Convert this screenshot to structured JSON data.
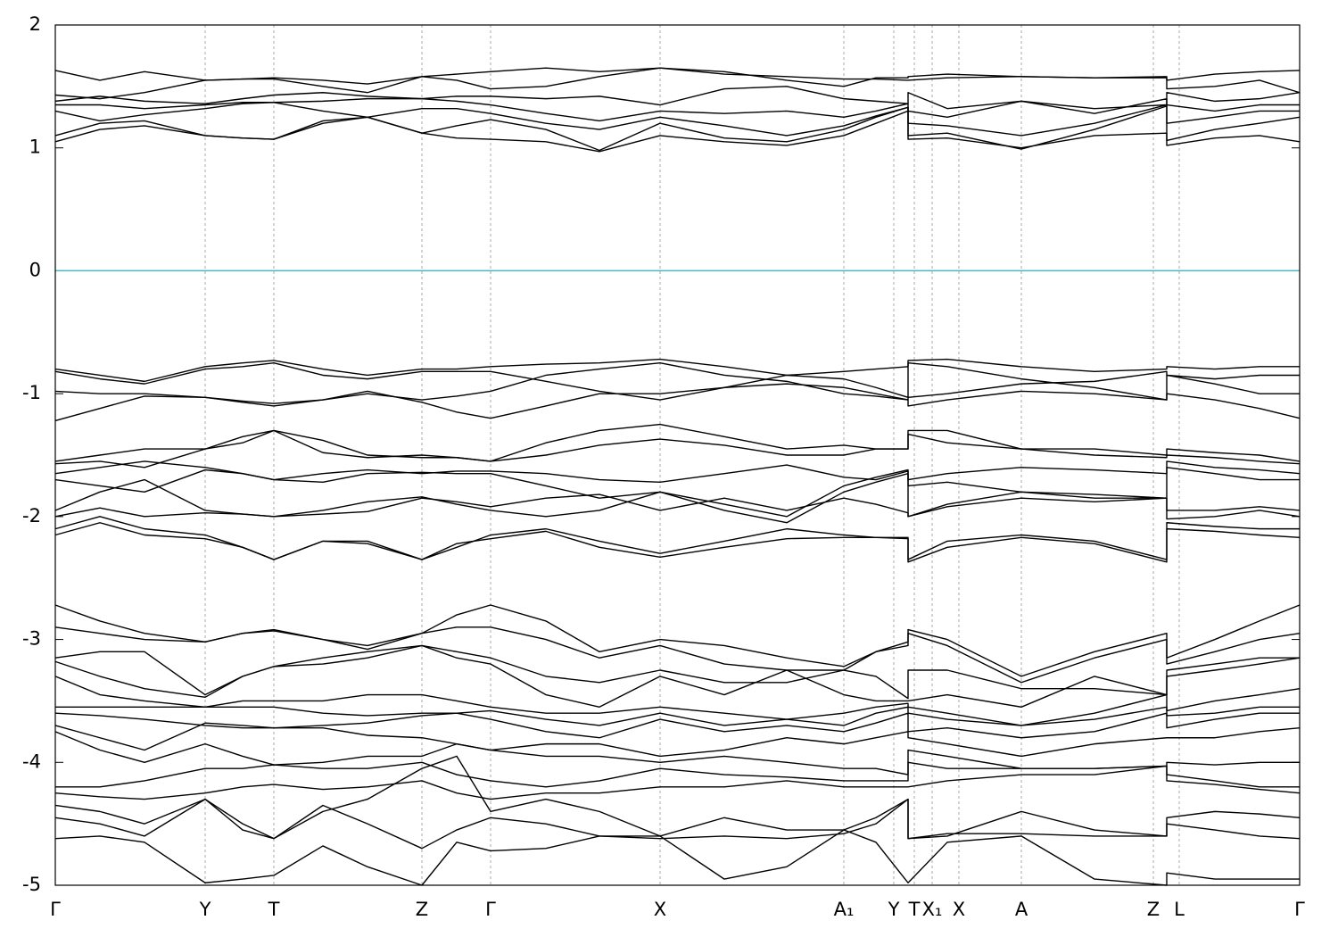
{
  "chart_data": {
    "type": "line",
    "color": "#000000",
    "grid": "x",
    "hline": {
      "value": 0,
      "color": "#4fb3c9"
    },
    "xlim": [
      0,
      2.79
    ],
    "ylim": [
      -5,
      2
    ],
    "yticks": [
      -5,
      -4,
      -3,
      -2,
      -1,
      0,
      1,
      2
    ],
    "xticks": [
      {
        "value": 0,
        "label": "Γ"
      },
      {
        "value": 0.336,
        "label": "Y"
      },
      {
        "value": 0.49,
        "label": "T"
      },
      {
        "value": 0.822,
        "label": "Z"
      },
      {
        "value": 0.976,
        "label": "Γ"
      },
      {
        "value": 1.356,
        "label": "X"
      },
      {
        "value": 1.768,
        "label": "A₁"
      },
      {
        "value": 1.88,
        "label": "Y"
      },
      {
        "value": 1.926,
        "label": "T"
      },
      {
        "value": 1.966,
        "label": "X₁"
      },
      {
        "value": 2.026,
        "label": "X"
      },
      {
        "value": 2.166,
        "label": "A"
      },
      {
        "value": 2.462,
        "label": "Z"
      },
      {
        "value": 2.52,
        "label": "L"
      },
      {
        "value": 2.79,
        "label": "Γ"
      }
    ],
    "x": [
      0,
      0.1,
      0.2,
      0.336,
      0.42,
      0.49,
      0.6,
      0.7,
      0.822,
      0.9,
      0.976,
      1.1,
      1.22,
      1.356,
      1.5,
      1.64,
      1.768,
      1.84,
      1.912,
      1.912,
      2.0,
      2.166,
      2.33,
      2.492,
      2.492,
      2.6,
      2.7,
      2.79
    ],
    "series": [
      {
        "values": [
          1.05,
          1.15,
          1.18,
          1.1,
          1.08,
          1.07,
          1.2,
          1.25,
          1.12,
          1.08,
          1.07,
          1.05,
          0.97,
          1.1,
          1.05,
          1.02,
          1.1,
          1.2,
          1.3,
          1.07,
          1.08,
          1.0,
          1.1,
          1.12,
          1.02,
          1.08,
          1.1,
          1.05
        ]
      },
      {
        "values": [
          1.1,
          1.2,
          1.22,
          1.1,
          1.08,
          1.07,
          1.22,
          1.25,
          1.12,
          1.18,
          1.23,
          1.15,
          0.98,
          1.2,
          1.08,
          1.05,
          1.15,
          1.25,
          1.33,
          1.1,
          1.12,
          0.99,
          1.15,
          1.34,
          1.06,
          1.15,
          1.2,
          1.25
        ]
      },
      {
        "values": [
          1.3,
          1.22,
          1.27,
          1.32,
          1.36,
          1.37,
          1.3,
          1.25,
          1.32,
          1.32,
          1.28,
          1.2,
          1.15,
          1.25,
          1.18,
          1.1,
          1.18,
          1.26,
          1.33,
          1.2,
          1.18,
          1.1,
          1.2,
          1.35,
          1.2,
          1.25,
          1.3,
          1.3
        ]
      },
      {
        "values": [
          1.35,
          1.35,
          1.32,
          1.35,
          1.37,
          1.37,
          1.38,
          1.4,
          1.4,
          1.38,
          1.35,
          1.28,
          1.22,
          1.3,
          1.28,
          1.3,
          1.25,
          1.3,
          1.36,
          1.3,
          1.25,
          1.38,
          1.28,
          1.4,
          1.35,
          1.3,
          1.35,
          1.35
        ]
      },
      {
        "values": [
          1.38,
          1.42,
          1.38,
          1.36,
          1.4,
          1.43,
          1.45,
          1.42,
          1.4,
          1.42,
          1.42,
          1.4,
          1.42,
          1.35,
          1.48,
          1.5,
          1.4,
          1.38,
          1.36,
          1.45,
          1.32,
          1.38,
          1.32,
          1.35,
          1.45,
          1.38,
          1.4,
          1.45
        ]
      },
      {
        "values": [
          1.43,
          1.4,
          1.45,
          1.55,
          1.56,
          1.56,
          1.5,
          1.45,
          1.58,
          1.55,
          1.48,
          1.5,
          1.58,
          1.65,
          1.6,
          1.58,
          1.56,
          1.56,
          1.55,
          1.55,
          1.57,
          1.58,
          1.57,
          1.57,
          1.48,
          1.5,
          1.55,
          1.45
        ]
      },
      {
        "values": [
          1.63,
          1.55,
          1.62,
          1.55,
          1.56,
          1.57,
          1.55,
          1.52,
          1.58,
          1.6,
          1.62,
          1.65,
          1.62,
          1.65,
          1.62,
          1.55,
          1.5,
          1.57,
          1.57,
          1.58,
          1.6,
          1.58,
          1.57,
          1.58,
          1.55,
          1.6,
          1.62,
          1.63
        ]
      },
      {
        "values": [
          -0.8,
          -0.85,
          -0.9,
          -0.78,
          -0.75,
          -0.73,
          -0.8,
          -0.85,
          -0.8,
          -0.8,
          -0.78,
          -0.76,
          -0.75,
          -0.72,
          -0.78,
          -0.85,
          -0.82,
          -0.8,
          -0.78,
          -0.73,
          -0.72,
          -0.78,
          -0.82,
          -0.8,
          -0.78,
          -0.8,
          -0.78,
          -0.78
        ]
      },
      {
        "values": [
          -0.82,
          -0.88,
          -0.92,
          -0.8,
          -0.78,
          -0.75,
          -0.85,
          -0.88,
          -0.82,
          -0.82,
          -0.82,
          -0.9,
          -0.98,
          -1.05,
          -0.95,
          -0.85,
          -0.88,
          -0.95,
          -1.03,
          -0.75,
          -0.78,
          -0.88,
          -0.95,
          -1.05,
          -0.85,
          -0.88,
          -0.85,
          -0.85
        ]
      },
      {
        "values": [
          -0.98,
          -1.0,
          -1.0,
          -1.03,
          -1.07,
          -1.1,
          -1.05,
          -1.0,
          -1.05,
          -1.02,
          -0.98,
          -0.85,
          -0.8,
          -0.75,
          -0.85,
          -0.9,
          -1.0,
          -1.02,
          -1.05,
          -1.03,
          -1.0,
          -0.92,
          -0.9,
          -0.82,
          -0.85,
          -0.92,
          -1.0,
          -1.0
        ]
      },
      {
        "values": [
          -1.22,
          -1.12,
          -1.02,
          -1.03,
          -1.06,
          -1.08,
          -1.05,
          -0.98,
          -1.07,
          -1.15,
          -1.2,
          -1.1,
          -1.0,
          -1.0,
          -0.95,
          -0.92,
          -0.95,
          -1.0,
          -1.05,
          -1.1,
          -1.05,
          -0.98,
          -1.0,
          -1.05,
          -1.0,
          -1.05,
          -1.12,
          -1.2
        ]
      },
      {
        "values": [
          -1.55,
          -1.5,
          -1.45,
          -1.45,
          -1.35,
          -1.3,
          -1.38,
          -1.5,
          -1.52,
          -1.52,
          -1.55,
          -1.4,
          -1.3,
          -1.25,
          -1.35,
          -1.45,
          -1.42,
          -1.45,
          -1.45,
          -1.3,
          -1.3,
          -1.45,
          -1.45,
          -1.5,
          -1.45,
          -1.48,
          -1.5,
          -1.55
        ]
      },
      {
        "values": [
          -1.57,
          -1.55,
          -1.6,
          -1.45,
          -1.4,
          -1.3,
          -1.48,
          -1.52,
          -1.5,
          -1.52,
          -1.55,
          -1.5,
          -1.42,
          -1.37,
          -1.42,
          -1.5,
          -1.5,
          -1.45,
          -1.45,
          -1.33,
          -1.4,
          -1.45,
          -1.5,
          -1.52,
          -1.5,
          -1.52,
          -1.55,
          -1.57
        ]
      },
      {
        "values": [
          -1.65,
          -1.6,
          -1.55,
          -1.6,
          -1.65,
          -1.7,
          -1.65,
          -1.62,
          -1.65,
          -1.63,
          -1.63,
          -1.65,
          -1.7,
          -1.72,
          -1.65,
          -1.58,
          -1.68,
          -1.7,
          -1.63,
          -1.7,
          -1.65,
          -1.6,
          -1.62,
          -1.65,
          -1.55,
          -1.6,
          -1.62,
          -1.65
        ]
      },
      {
        "values": [
          -1.7,
          -1.75,
          -1.8,
          -1.62,
          -1.65,
          -1.7,
          -1.72,
          -1.65,
          -1.64,
          -1.65,
          -1.65,
          -1.75,
          -1.85,
          -1.8,
          -1.9,
          -2.0,
          -1.75,
          -1.68,
          -1.62,
          -1.75,
          -1.72,
          -1.8,
          -1.82,
          -1.85,
          -1.6,
          -1.65,
          -1.7,
          -1.7
        ]
      },
      {
        "values": [
          -1.95,
          -1.8,
          -1.7,
          -1.95,
          -1.98,
          -2.0,
          -1.95,
          -1.88,
          -1.84,
          -1.9,
          -1.95,
          -2.0,
          -1.95,
          -1.8,
          -1.95,
          -2.05,
          -1.8,
          -1.72,
          -1.65,
          -2.0,
          -1.9,
          -1.8,
          -1.85,
          -1.85,
          -1.95,
          -1.95,
          -1.92,
          -1.95
        ]
      },
      {
        "values": [
          -2.0,
          -1.93,
          -2.0,
          -1.97,
          -1.98,
          -2.0,
          -1.98,
          -1.96,
          -1.85,
          -1.88,
          -1.92,
          -1.85,
          -1.82,
          -1.95,
          -1.85,
          -1.95,
          -1.85,
          -1.9,
          -1.97,
          -2.0,
          -1.92,
          -1.85,
          -1.88,
          -1.85,
          -2.02,
          -2.0,
          -1.95,
          -2.0
        ]
      },
      {
        "values": [
          -2.1,
          -2.0,
          -2.1,
          -2.15,
          -2.25,
          -2.35,
          -2.2,
          -2.2,
          -2.35,
          -2.25,
          -2.15,
          -2.1,
          -2.2,
          -2.3,
          -2.2,
          -2.1,
          -2.15,
          -2.17,
          -2.17,
          -2.35,
          -2.2,
          -2.15,
          -2.2,
          -2.35,
          -2.05,
          -2.08,
          -2.1,
          -2.1
        ]
      },
      {
        "values": [
          -2.15,
          -2.05,
          -2.15,
          -2.18,
          -2.25,
          -2.35,
          -2.2,
          -2.22,
          -2.35,
          -2.22,
          -2.18,
          -2.12,
          -2.25,
          -2.33,
          -2.25,
          -2.18,
          -2.17,
          -2.17,
          -2.18,
          -2.37,
          -2.25,
          -2.17,
          -2.22,
          -2.37,
          -2.1,
          -2.12,
          -2.15,
          -2.17
        ]
      },
      {
        "values": [
          -2.72,
          -2.85,
          -2.95,
          -3.02,
          -2.95,
          -2.92,
          -3.0,
          -3.08,
          -2.95,
          -2.8,
          -2.72,
          -2.85,
          -3.1,
          -3.0,
          -3.05,
          -3.15,
          -3.22,
          -3.1,
          -3.02,
          -2.92,
          -3.0,
          -3.3,
          -3.1,
          -2.95,
          -3.15,
          -3.0,
          -2.85,
          -2.72
        ]
      },
      {
        "values": [
          -2.9,
          -2.95,
          -3.0,
          -3.02,
          -2.95,
          -2.93,
          -3.0,
          -3.05,
          -2.95,
          -2.9,
          -2.9,
          -3.0,
          -3.15,
          -3.05,
          -3.2,
          -3.25,
          -3.25,
          -3.1,
          -3.05,
          -2.95,
          -3.05,
          -3.35,
          -3.15,
          -3.0,
          -3.2,
          -3.1,
          -3.0,
          -2.95
        ]
      },
      {
        "values": [
          -3.15,
          -3.1,
          -3.1,
          -3.45,
          -3.3,
          -3.22,
          -3.15,
          -3.1,
          -3.05,
          -3.1,
          -3.15,
          -3.3,
          -3.35,
          -3.25,
          -3.35,
          -3.35,
          -3.25,
          -3.3,
          -3.48,
          -3.25,
          -3.25,
          -3.4,
          -3.4,
          -3.45,
          -3.25,
          -3.2,
          -3.15,
          -3.15
        ]
      },
      {
        "values": [
          -3.18,
          -3.3,
          -3.4,
          -3.47,
          -3.3,
          -3.22,
          -3.2,
          -3.15,
          -3.05,
          -3.15,
          -3.2,
          -3.45,
          -3.55,
          -3.3,
          -3.45,
          -3.25,
          -3.45,
          -3.5,
          -3.5,
          -3.5,
          -3.45,
          -3.55,
          -3.3,
          -3.45,
          -3.3,
          -3.25,
          -3.2,
          -3.15
        ]
      },
      {
        "values": [
          -3.3,
          -3.45,
          -3.5,
          -3.55,
          -3.5,
          -3.5,
          -3.5,
          -3.45,
          -3.45,
          -3.5,
          -3.55,
          -3.6,
          -3.6,
          -3.55,
          -3.6,
          -3.65,
          -3.6,
          -3.55,
          -3.52,
          -3.55,
          -3.6,
          -3.7,
          -3.6,
          -3.45,
          -3.58,
          -3.5,
          -3.45,
          -3.4
        ]
      },
      {
        "values": [
          -3.55,
          -3.55,
          -3.55,
          -3.55,
          -3.55,
          -3.55,
          -3.6,
          -3.62,
          -3.6,
          -3.6,
          -3.58,
          -3.65,
          -3.7,
          -3.6,
          -3.7,
          -3.65,
          -3.7,
          -3.6,
          -3.55,
          -3.6,
          -3.65,
          -3.7,
          -3.65,
          -3.55,
          -3.62,
          -3.6,
          -3.55,
          -3.55
        ]
      },
      {
        "values": [
          -3.6,
          -3.62,
          -3.65,
          -3.7,
          -3.72,
          -3.72,
          -3.7,
          -3.68,
          -3.62,
          -3.6,
          -3.65,
          -3.75,
          -3.8,
          -3.65,
          -3.75,
          -3.7,
          -3.75,
          -3.68,
          -3.6,
          -3.75,
          -3.72,
          -3.8,
          -3.75,
          -3.6,
          -3.72,
          -3.65,
          -3.6,
          -3.6
        ]
      },
      {
        "values": [
          -3.7,
          -3.8,
          -3.9,
          -3.68,
          -3.7,
          -3.72,
          -3.72,
          -3.78,
          -3.8,
          -3.85,
          -3.9,
          -3.85,
          -3.85,
          -3.95,
          -3.9,
          -3.8,
          -3.85,
          -3.8,
          -3.75,
          -3.8,
          -3.85,
          -3.95,
          -3.85,
          -3.8,
          -3.8,
          -3.8,
          -3.75,
          -3.72
        ]
      },
      {
        "values": [
          -3.75,
          -3.9,
          -4.0,
          -3.85,
          -3.95,
          -4.02,
          -4.0,
          -3.95,
          -3.95,
          -3.85,
          -3.9,
          -3.95,
          -3.95,
          -4.0,
          -3.95,
          -4.0,
          -4.05,
          -4.05,
          -4.1,
          -3.9,
          -3.95,
          -4.05,
          -4.05,
          -4.03,
          -4.0,
          -4.02,
          -4.0,
          -4.0
        ]
      },
      {
        "values": [
          -4.2,
          -4.2,
          -4.15,
          -4.05,
          -4.05,
          -4.02,
          -4.05,
          -4.05,
          -4.0,
          -4.1,
          -4.15,
          -4.2,
          -4.15,
          -4.05,
          -4.1,
          -4.12,
          -4.15,
          -4.15,
          -4.15,
          -4.0,
          -4.05,
          -4.05,
          -4.05,
          -4.03,
          -4.1,
          -4.15,
          -4.2,
          -4.2
        ]
      },
      {
        "values": [
          -4.25,
          -4.28,
          -4.3,
          -4.25,
          -4.2,
          -4.18,
          -4.22,
          -4.2,
          -4.15,
          -4.25,
          -4.3,
          -4.25,
          -4.25,
          -4.2,
          -4.2,
          -4.15,
          -4.2,
          -4.2,
          -4.2,
          -4.2,
          -4.15,
          -4.1,
          -4.1,
          -4.03,
          -4.15,
          -4.18,
          -4.22,
          -4.25
        ]
      },
      {
        "values": [
          -4.35,
          -4.4,
          -4.5,
          -4.3,
          -4.55,
          -4.62,
          -4.4,
          -4.3,
          -4.05,
          -3.95,
          -4.4,
          -4.3,
          -4.4,
          -4.6,
          -4.45,
          -4.55,
          -4.55,
          -4.45,
          -4.3,
          -4.62,
          -4.6,
          -4.4,
          -4.55,
          -4.6,
          -4.45,
          -4.4,
          -4.42,
          -4.45
        ]
      },
      {
        "values": [
          -4.45,
          -4.5,
          -4.6,
          -4.3,
          -4.5,
          -4.62,
          -4.35,
          -4.5,
          -4.7,
          -4.55,
          -4.45,
          -4.5,
          -4.6,
          -4.62,
          -4.6,
          -4.62,
          -4.58,
          -4.5,
          -4.3,
          -4.62,
          -4.58,
          -4.58,
          -4.6,
          -4.6,
          -4.5,
          -4.55,
          -4.6,
          -4.62
        ]
      },
      {
        "values": [
          -4.62,
          -4.6,
          -4.65,
          -4.98,
          -4.95,
          -4.92,
          -4.68,
          -4.85,
          -5.0,
          -4.65,
          -4.72,
          -4.7,
          -4.6,
          -4.6,
          -4.95,
          -4.85,
          -4.55,
          -4.65,
          -4.98,
          -4.98,
          -4.65,
          -4.6,
          -4.95,
          -5.0,
          -4.9,
          -4.95,
          -4.95,
          -4.95
        ]
      }
    ]
  }
}
